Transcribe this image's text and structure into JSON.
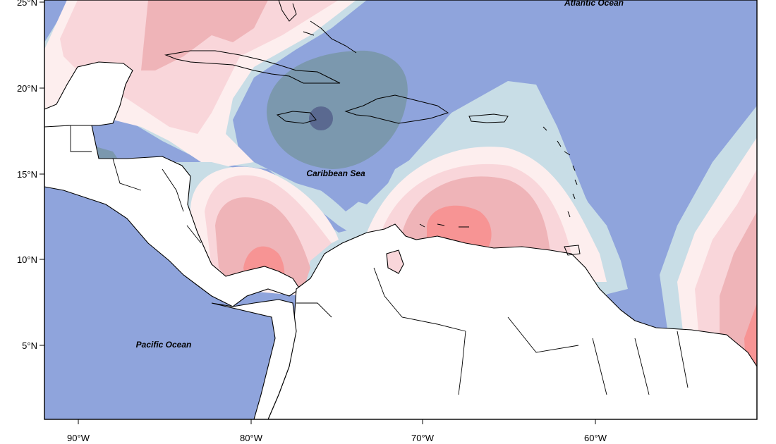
{
  "map": {
    "x_ticks": [
      "90°W",
      "80°W",
      "70°W",
      "60°W"
    ],
    "y_ticks": [
      "25°N",
      "20°N",
      "15°N",
      "10°N",
      "5°N"
    ],
    "labels": {
      "atlantic": "Atlantic Ocean",
      "caribbean": "Caribbean Sea",
      "pacific": "Pacific Ocean"
    },
    "colors": {
      "dark_blue": "#5a6990",
      "slate_blue": "#7b98ae",
      "blue": "#8fa4dc",
      "light_blue": "#c8dde6",
      "cream": "#fdeeee",
      "light_pink": "#f9d6da",
      "pink": "#efb4b8",
      "red": "#f79494",
      "land": "#ffffff"
    }
  }
}
